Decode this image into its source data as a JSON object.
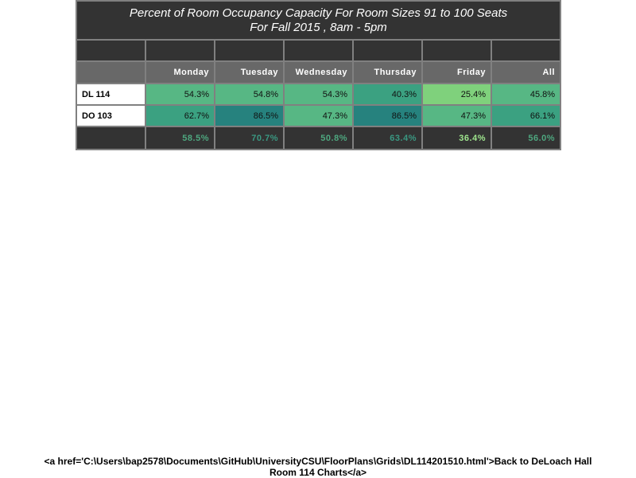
{
  "chart_data": {
    "type": "table",
    "title": "Percent of Room Occupancy Capacity For Room Sizes 91 to 100 Seats",
    "subtitle": "For Fall 2015  , 8am - 5pm",
    "columns": [
      "Monday",
      "Tuesday",
      "Wednesday",
      "Thursday",
      "Friday",
      "All"
    ],
    "rows": [
      {
        "room": "DL 114",
        "values": [
          "54.3%",
          "54.8%",
          "54.3%",
          "40.3%",
          "25.4%",
          "45.8%"
        ],
        "colors": [
          "#57b784",
          "#57b784",
          "#57b784",
          "#3ba181",
          "#7fd17c",
          "#57b784"
        ]
      },
      {
        "room": "DO 103",
        "values": [
          "62.7%",
          "86.5%",
          "47.3%",
          "86.5%",
          "47.3%",
          "66.1%"
        ],
        "colors": [
          "#3ba181",
          "#26827e",
          "#57b784",
          "#26827e",
          "#57b784",
          "#3ba181"
        ]
      }
    ],
    "averages": {
      "values": [
        "58.5%",
        "70.7%",
        "50.8%",
        "63.4%",
        "36.4%",
        "56.0%"
      ],
      "colors": [
        "#4ea77f",
        "#3a9882",
        "#4ea77f",
        "#3a9882",
        "#9fe68e",
        "#4ea77f"
      ]
    }
  },
  "footer": {
    "line1": "<a href='C:\\Users\\bap2578\\Documents\\GitHub\\UniversityCSU\\FloorPlans\\Grids\\DL114201510.html'>Back to DeLoach Hall",
    "line2": "Room 114 Charts</a>"
  }
}
